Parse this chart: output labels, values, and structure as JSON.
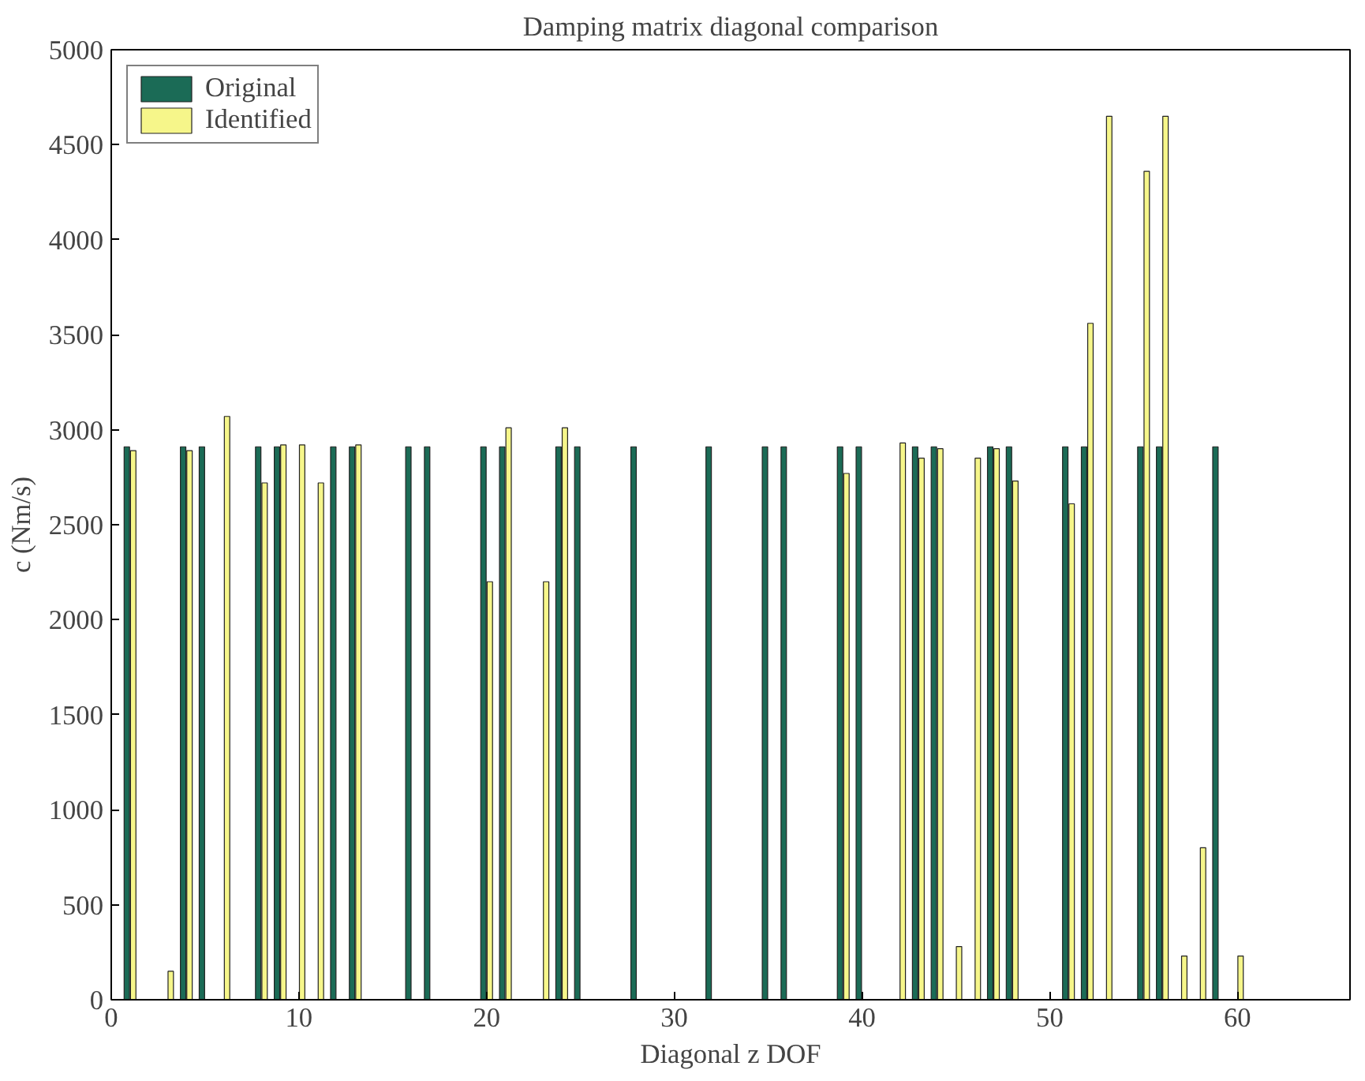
{
  "chart_data": {
    "type": "bar",
    "title": "Damping matrix diagonal comparison",
    "xlabel": "Diagonal z DOF",
    "ylabel": "c (Nm/s)",
    "x": [
      1,
      2,
      3,
      4,
      5,
      6,
      7,
      8,
      9,
      10,
      11,
      12,
      13,
      14,
      15,
      16,
      17,
      18,
      19,
      20,
      21,
      22,
      23,
      24,
      25,
      26,
      27,
      28,
      29,
      30,
      31,
      32,
      33,
      34,
      35,
      36,
      37,
      38,
      39,
      40,
      41,
      42,
      43,
      44,
      45,
      46,
      47,
      48,
      49,
      50,
      51,
      52,
      53,
      54,
      55,
      56,
      57,
      58,
      59,
      60
    ],
    "series": [
      {
        "name": "Original",
        "color": "#1b6b56",
        "values": [
          2910,
          null,
          null,
          2910,
          2910,
          null,
          null,
          2910,
          2910,
          null,
          null,
          2910,
          2910,
          null,
          null,
          2910,
          2910,
          null,
          null,
          2910,
          2910,
          null,
          null,
          2910,
          2910,
          null,
          null,
          2910,
          null,
          null,
          null,
          2910,
          null,
          null,
          2910,
          2910,
          null,
          null,
          2910,
          2910,
          null,
          null,
          2910,
          2910,
          null,
          null,
          2910,
          2910,
          null,
          null,
          2910,
          2910,
          null,
          null,
          2910,
          2910,
          null,
          null,
          2910,
          null
        ]
      },
      {
        "name": "Identified",
        "color": "#f6f68a",
        "values": [
          2890,
          null,
          150,
          2890,
          null,
          3070,
          null,
          2720,
          2920,
          2920,
          2720,
          null,
          2920,
          null,
          null,
          null,
          null,
          null,
          null,
          2200,
          3010,
          null,
          2200,
          3010,
          null,
          null,
          null,
          null,
          null,
          null,
          null,
          null,
          null,
          null,
          null,
          null,
          null,
          null,
          2770,
          null,
          null,
          2930,
          2850,
          2900,
          280,
          2850,
          2900,
          2730,
          null,
          null,
          2610,
          3560,
          4650,
          null,
          4360,
          4650,
          230,
          800,
          null,
          230
        ]
      }
    ],
    "xlim": [
      0,
      66
    ],
    "xticks": [
      0,
      10,
      20,
      30,
      40,
      50,
      60
    ],
    "ylim": [
      0,
      5000
    ],
    "yticks": [
      0,
      500,
      1000,
      1500,
      2000,
      2500,
      3000,
      3500,
      4000,
      4500,
      5000
    ],
    "grid": false,
    "legend": "top left"
  }
}
